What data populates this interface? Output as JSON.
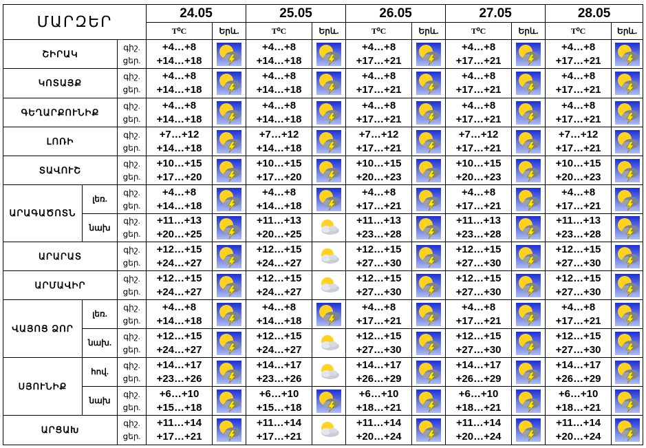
{
  "title": "ՄԱՐԶԵՐ",
  "temp_header": "T⁰C",
  "weather_header": "Երև.",
  "days": [
    "24.05",
    "25.05",
    "26.05",
    "27.05",
    "28.05"
  ],
  "rows": [
    {
      "region": "ՇԻՐԱԿ",
      "sub": "",
      "time": [
        "գիշ.",
        "ցեր."
      ],
      "cells": [
        {
          "night": "+4…+8",
          "day": "+14…+18",
          "icon": "thunderstorm-sun-icon"
        },
        {
          "night": "+4…+8",
          "day": "+14…+18",
          "icon": "thunderstorm-sun-icon"
        },
        {
          "night": "+4…+8",
          "day": "+17…+21",
          "icon": "thunderstorm-sun-icon"
        },
        {
          "night": "+4…+8",
          "day": "+17…+21",
          "icon": "thunderstorm-sun-icon"
        },
        {
          "night": "+4…+8",
          "day": "+17…+21",
          "icon": "thunderstorm-sun-icon"
        }
      ]
    },
    {
      "region": "ԿՈՏԱՅՔ",
      "sub": "",
      "time": [
        "գիշ.",
        "ցեր."
      ],
      "cells": [
        {
          "night": "+4…+8",
          "day": "+14…+18",
          "icon": "thunderstorm-sun-icon"
        },
        {
          "night": "+4…+8",
          "day": "+14…+18",
          "icon": "thunderstorm-sun-icon"
        },
        {
          "night": "+4…+8",
          "day": "+17…+21",
          "icon": "thunderstorm-sun-icon"
        },
        {
          "night": "+4…+8",
          "day": "+17…+21",
          "icon": "thunderstorm-sun-icon"
        },
        {
          "night": "+4…+8",
          "day": "+17…+21",
          "icon": "thunderstorm-sun-icon"
        }
      ]
    },
    {
      "region": "ԳԵՂԱՐՔՈՒՆԻՔ",
      "sub": "",
      "time": [
        "գիշ.",
        "ցեր."
      ],
      "cells": [
        {
          "night": "+4…+8",
          "day": "+14…+18",
          "icon": "thunderstorm-sun-icon"
        },
        {
          "night": "+4…+8",
          "day": "+14…+18",
          "icon": "thunderstorm-sun-icon"
        },
        {
          "night": "+4…+8",
          "day": "+17…+21",
          "icon": "thunderstorm-sun-icon"
        },
        {
          "night": "+4…+8",
          "day": "+17…+21",
          "icon": "thunderstorm-sun-icon"
        },
        {
          "night": "+4…+8",
          "day": "+17…+21",
          "icon": "thunderstorm-sun-icon"
        }
      ]
    },
    {
      "region": "ԼՈՌԻ",
      "sub": "",
      "time": [
        "գիշ.",
        "ցեր."
      ],
      "cells": [
        {
          "night": "+7…+12",
          "day": "+14…+18",
          "icon": "thunderstorm-sun-icon"
        },
        {
          "night": "+7…+12",
          "day": "+14…+18",
          "icon": "thunderstorm-sun-icon"
        },
        {
          "night": "+7…+12",
          "day": "+17…+21",
          "icon": "thunderstorm-sun-icon"
        },
        {
          "night": "+7…+12",
          "day": "+17…+21",
          "icon": "thunderstorm-sun-icon"
        },
        {
          "night": "+7…+12",
          "day": "+17…+21",
          "icon": "thunderstorm-sun-icon"
        }
      ]
    },
    {
      "region": "ՏԱՎՈՒՇ",
      "sub": "",
      "time": [
        "գիշ.",
        "ցեր."
      ],
      "cells": [
        {
          "night": "+10…+15",
          "day": "+17…+20",
          "icon": "thunderstorm-sun-icon"
        },
        {
          "night": "+10…+15",
          "day": "+17…+20",
          "icon": "thunderstorm-sun-icon"
        },
        {
          "night": "+10…+15",
          "day": "+20…+23",
          "icon": "thunderstorm-sun-icon"
        },
        {
          "night": "+10…+15",
          "day": "+20…+23",
          "icon": "thunderstorm-sun-icon"
        },
        {
          "night": "+10…+15",
          "day": "+20…+23",
          "icon": "thunderstorm-sun-icon"
        }
      ]
    },
    {
      "region": "ԱՐԱԳԱԾՈՏՆ",
      "sub": "լեռ.",
      "time": [
        "գիշ.",
        "ցեր."
      ],
      "cells": [
        {
          "night": "+4…+8",
          "day": "+14…+18",
          "icon": "thunderstorm-sun-icon"
        },
        {
          "night": "+4…+8",
          "day": "+14…+18",
          "icon": "thunderstorm-sun-icon"
        },
        {
          "night": "+4…+8",
          "day": "+17…+21",
          "icon": "thunderstorm-sun-icon"
        },
        {
          "night": "+4…+8",
          "day": "+17…+21",
          "icon": "thunderstorm-sun-icon"
        },
        {
          "night": "+4…+8",
          "day": "+17…+21",
          "icon": "thunderstorm-sun-icon"
        }
      ]
    },
    {
      "region": "",
      "sub": "նախ",
      "time": [
        "գիշ.",
        "ցեր."
      ],
      "cells": [
        {
          "night": "+11…+13",
          "day": "+20…+25",
          "icon": "thunderstorm-sun-icon"
        },
        {
          "night": "+11…+13",
          "day": "+20…+25",
          "icon": "partly-cloudy-icon"
        },
        {
          "night": "+11…+13",
          "day": "+23…+28",
          "icon": "thunderstorm-sun-icon"
        },
        {
          "night": "+11…+13",
          "day": "+23…+28",
          "icon": "thunderstorm-sun-icon"
        },
        {
          "night": "+11…+13",
          "day": "+23…+28",
          "icon": "thunderstorm-sun-icon"
        }
      ]
    },
    {
      "region": "ԱՐԱՐԱՏ",
      "sub": "",
      "time": [
        "գիշ.",
        "ցեր."
      ],
      "cells": [
        {
          "night": "+12…+15",
          "day": "+24…+27",
          "icon": "thunderstorm-sun-icon"
        },
        {
          "night": "+12…+15",
          "day": "+24…+27",
          "icon": "partly-cloudy-icon"
        },
        {
          "night": "+12…+15",
          "day": "+27…+30",
          "icon": "thunderstorm-sun-icon"
        },
        {
          "night": "+12…+15",
          "day": "+27…+30",
          "icon": "thunderstorm-sun-icon"
        },
        {
          "night": "+12…+15",
          "day": "+27…+30",
          "icon": "thunderstorm-sun-icon"
        }
      ]
    },
    {
      "region": "ԱՐՄԱՎԻՐ",
      "sub": "",
      "time": [
        "գիշ.",
        "ցեր."
      ],
      "cells": [
        {
          "night": "+12…+15",
          "day": "+24…+27",
          "icon": "thunderstorm-sun-icon"
        },
        {
          "night": "+12…+15",
          "day": "+24…+27",
          "icon": "partly-cloudy-icon"
        },
        {
          "night": "+12…+15",
          "day": "+27…+30",
          "icon": "thunderstorm-sun-icon"
        },
        {
          "night": "+12…+15",
          "day": "+27…+30",
          "icon": "thunderstorm-sun-icon"
        },
        {
          "night": "+12…+15",
          "day": "+27…+30",
          "icon": "thunderstorm-sun-icon"
        }
      ]
    },
    {
      "region": "ՎԱՅՈՑ ՁՈՐ",
      "sub": "լեռ.",
      "time": [
        "գիշ.",
        "ցեր."
      ],
      "cells": [
        {
          "night": "+4…+8",
          "day": "+14…+18",
          "icon": "thunderstorm-sun-icon"
        },
        {
          "night": "+4…+8",
          "day": "+14…+18",
          "icon": "thunderstorm-sun-icon"
        },
        {
          "night": "+4…+8",
          "day": "+17…+21",
          "icon": "thunderstorm-sun-icon"
        },
        {
          "night": "+4…+8",
          "day": "+17…+21",
          "icon": "thunderstorm-sun-icon"
        },
        {
          "night": "+4…+8",
          "day": "+17…+21",
          "icon": "thunderstorm-sun-icon"
        }
      ]
    },
    {
      "region": "",
      "sub": "նախ.",
      "time": [
        "գիշ.",
        "ցեր."
      ],
      "cells": [
        {
          "night": "+12…+15",
          "day": "+24…+27",
          "icon": "thunderstorm-sun-icon"
        },
        {
          "night": "+12…+15",
          "day": "+24…+27",
          "icon": "partly-cloudy-icon"
        },
        {
          "night": "+12…+15",
          "day": "+27…+30",
          "icon": "thunderstorm-sun-icon"
        },
        {
          "night": "+12…+15",
          "day": "+27…+30",
          "icon": "thunderstorm-sun-icon"
        },
        {
          "night": "+12…+15",
          "day": "+27…+30",
          "icon": "thunderstorm-sun-icon"
        }
      ]
    },
    {
      "region": "ՍՅՈՒՆԻՔ",
      "sub": "հով.",
      "time": [
        "գիշ.",
        "ցեր."
      ],
      "cells": [
        {
          "night": "+14…+17",
          "day": "+23…+26",
          "icon": "thunderstorm-sun-icon"
        },
        {
          "night": "+14…+17",
          "day": "+23…+26",
          "icon": "partly-cloudy-icon"
        },
        {
          "night": "+14…+17",
          "day": "+26…+29",
          "icon": "thunderstorm-sun-icon"
        },
        {
          "night": "+14…+17",
          "day": "+26…+29",
          "icon": "thunderstorm-sun-icon"
        },
        {
          "night": "+14…+17",
          "day": "+26…+29",
          "icon": "thunderstorm-sun-icon"
        }
      ]
    },
    {
      "region": "",
      "sub": "նախ",
      "time": [
        "գիշ.",
        "ցեր."
      ],
      "cells": [
        {
          "night": "+6…+10",
          "day": "+15…+18",
          "icon": "thunderstorm-sun-icon"
        },
        {
          "night": "+6…+10",
          "day": "+15…+18",
          "icon": "thunderstorm-sun-icon"
        },
        {
          "night": "+6…+10",
          "day": "+18…+21",
          "icon": "thunderstorm-sun-icon"
        },
        {
          "night": "+6…+10",
          "day": "+18…+21",
          "icon": "thunderstorm-sun-icon"
        },
        {
          "night": "+6…+10",
          "day": "+18…+21",
          "icon": "thunderstorm-sun-icon"
        }
      ]
    },
    {
      "region": "ԱՐՑԱԽ",
      "sub": "",
      "time": [
        "գիշ.",
        "ցեր."
      ],
      "cells": [
        {
          "night": "+11…+14",
          "day": "+17…+21",
          "icon": "thunderstorm-sun-icon"
        },
        {
          "night": "+11…+14",
          "day": "+17…+21",
          "icon": "partly-cloudy-icon"
        },
        {
          "night": "+11…+14",
          "day": "+20…+24",
          "icon": "thunderstorm-sun-icon"
        },
        {
          "night": "+11…+14",
          "day": "+20…+24",
          "icon": "thunderstorm-sun-icon"
        },
        {
          "night": "+11…+14",
          "day": "+20…+24",
          "icon": "thunderstorm-sun-icon"
        }
      ]
    }
  ],
  "colors": {
    "icon_sky_top": "#1b2fd6",
    "icon_sky_bottom": "#aebcf0",
    "sun": "#ffd21e",
    "cloud_dark": "#7d8496",
    "lightning": "#ffe800"
  }
}
